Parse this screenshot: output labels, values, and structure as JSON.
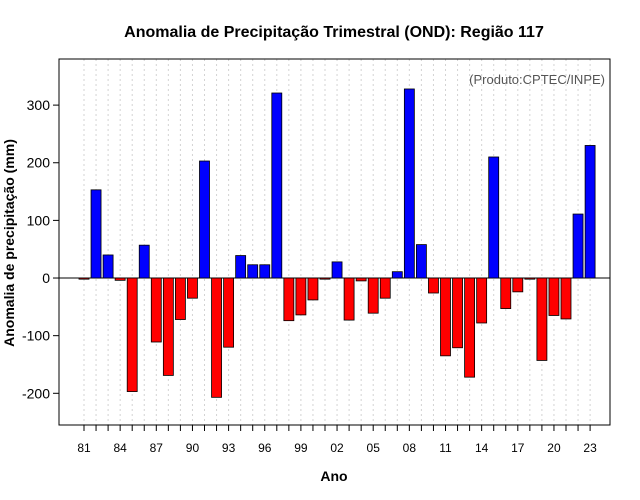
{
  "chart_data": {
    "type": "bar",
    "title": "Anomalia de Precipitação Trimestral (OND): Região 117",
    "source_note": "(Produto:CPTEC/INPE)",
    "xlabel": "Ano",
    "ylabel": "Anomalia de precipitação (mm)",
    "ylim": [
      -255,
      380
    ],
    "yticks": [
      -200,
      -100,
      0,
      100,
      200,
      300
    ],
    "xtick_labels": [
      "81",
      "84",
      "87",
      "90",
      "93",
      "96",
      "99",
      "02",
      "05",
      "08",
      "11",
      "14",
      "17",
      "20",
      "23"
    ],
    "xtick_years": [
      1981,
      1984,
      1987,
      1990,
      1993,
      1996,
      1999,
      2002,
      2005,
      2008,
      2011,
      2014,
      2017,
      2020,
      2023
    ],
    "colors": {
      "positive": "#0000ff",
      "negative": "#ff0000",
      "grid": "#d3d3d3"
    },
    "series": [
      {
        "name": "OND anomaly",
        "x": [
          1981,
          1982,
          1983,
          1984,
          1985,
          1986,
          1987,
          1988,
          1989,
          1990,
          1991,
          1992,
          1993,
          1994,
          1995,
          1996,
          1997,
          1998,
          1999,
          2000,
          2001,
          2002,
          2003,
          2004,
          2005,
          2006,
          2007,
          2008,
          2009,
          2010,
          2011,
          2012,
          2013,
          2014,
          2015,
          2016,
          2017,
          2018,
          2019,
          2020,
          2021,
          2022,
          2023
        ],
        "values": [
          -2,
          153,
          40,
          -4,
          -197,
          57,
          -111,
          -169,
          -72,
          -35,
          203,
          -207,
          -120,
          39,
          23,
          23,
          321,
          -74,
          -64,
          -38,
          -2,
          28,
          -73,
          -5,
          -61,
          -35,
          11,
          328,
          58,
          -26,
          -135,
          -121,
          -172,
          -78,
          210,
          -53,
          -24,
          -2,
          -143,
          -65,
          -71,
          111,
          230
        ]
      }
    ]
  }
}
